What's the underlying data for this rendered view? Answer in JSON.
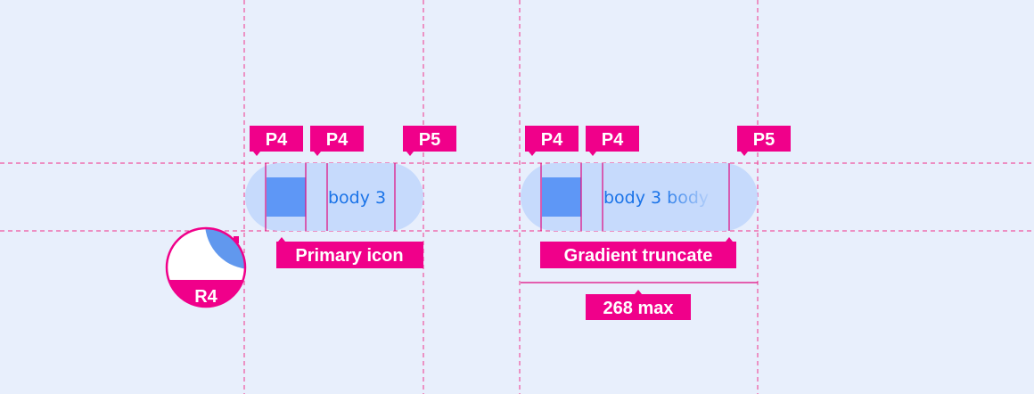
{
  "colors": {
    "accent": "#f0008a",
    "chip": "#c6dafc",
    "icon": "#5e97f6",
    "text": "#1a73e8",
    "background": "#e8effc"
  },
  "chip_short": {
    "text": "body 3",
    "padding_labels": [
      "P4",
      "P4",
      "P5"
    ],
    "callout": "Primary icon"
  },
  "chip_long": {
    "text": "body 3 body",
    "padding_labels": [
      "P4",
      "P4",
      "P5"
    ],
    "callout": "Gradient truncate",
    "width_label": "268 max"
  },
  "radius_badge": {
    "label": "R4"
  }
}
